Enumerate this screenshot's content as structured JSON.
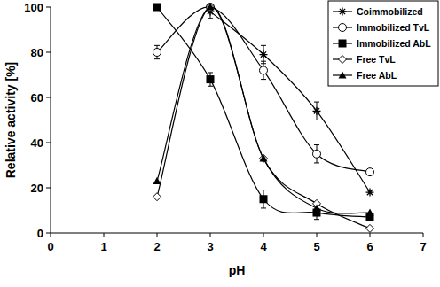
{
  "chart_data": {
    "type": "line",
    "x_label": "pH",
    "y_label": "Relative activity [%]",
    "x": [
      2,
      3,
      4,
      5,
      6
    ],
    "xlim": [
      0,
      7
    ],
    "xticks": [
      0,
      1,
      2,
      3,
      4,
      5,
      6,
      7
    ],
    "ylim": [
      0,
      100
    ],
    "yticks": [
      0,
      20,
      40,
      60,
      80,
      100
    ],
    "grid": false,
    "legend": "top-right",
    "series": [
      {
        "name": "Coimmobilized",
        "color": "#000000",
        "marker": "asterisk",
        "line_style": "solid",
        "values": [
          null,
          98,
          79,
          54,
          18
        ],
        "errors": [
          null,
          3,
          4,
          4,
          null
        ]
      },
      {
        "name": "Immobilized TvL",
        "color": "#000000",
        "marker": "circle-open",
        "line_style": "solid",
        "values": [
          80,
          100,
          72,
          35,
          27
        ],
        "errors": [
          3,
          null,
          4,
          4,
          null
        ]
      },
      {
        "name": "Immobilized AbL",
        "color": "#000000",
        "marker": "square",
        "line_style": "solid",
        "values": [
          100,
          68,
          15,
          9,
          7
        ],
        "errors": [
          null,
          3,
          4,
          3,
          null
        ]
      },
      {
        "name": "Free TvL",
        "color": "#000000",
        "marker": "diamond-open",
        "line_style": "solid",
        "values": [
          16,
          100,
          33,
          13,
          2
        ],
        "errors": [
          null,
          null,
          null,
          null,
          null
        ]
      },
      {
        "name": "Free AbL",
        "color": "#000000",
        "marker": "triangle",
        "line_style": "solid",
        "values": [
          23,
          100,
          33,
          11,
          9
        ],
        "errors": [
          null,
          null,
          null,
          null,
          null
        ]
      }
    ]
  }
}
